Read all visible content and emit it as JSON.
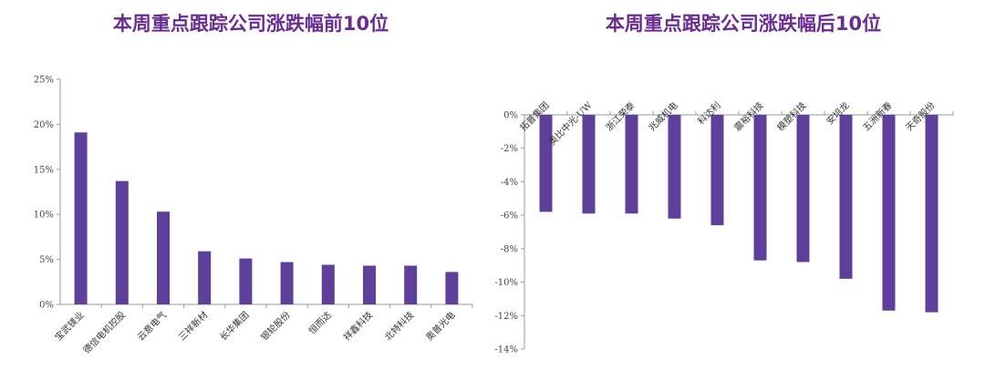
{
  "colors": {
    "bar": "#5e3f99",
    "title": "#6a2c91",
    "axis": "#9a9a9a"
  },
  "chart_data": [
    {
      "type": "bar",
      "title": "本周重点跟踪公司涨跌幅前10位",
      "categories": [
        "宝武镁业",
        "德信电机控股",
        "云意电气",
        "三祥新材",
        "长华集团",
        "银轮股份",
        "恒而达",
        "祥鑫科技",
        "北特科技",
        "奥普光电"
      ],
      "values": [
        19.1,
        13.7,
        10.3,
        5.9,
        5.1,
        4.7,
        4.4,
        4.3,
        4.3,
        3.6
      ],
      "ylim": [
        0,
        25
      ],
      "yticks": [
        0,
        5,
        10,
        15,
        20,
        25
      ],
      "tick_labels": [
        "0%",
        "5%",
        "10%",
        "15%",
        "20%",
        "25%"
      ],
      "xlabel": "",
      "ylabel": "",
      "grid": false,
      "category_axis": "bottom"
    },
    {
      "type": "bar",
      "title": "本周重点跟踪公司涨跌幅后10位",
      "categories": [
        "拓普集团",
        "奥比中光-UW",
        "浙江荣泰",
        "兆威机电",
        "科达利",
        "震裕科技",
        "模塑科技",
        "安培龙",
        "五洲新春",
        "天奇股份"
      ],
      "values": [
        -5.8,
        -5.9,
        -5.9,
        -6.2,
        -6.6,
        -8.7,
        -8.8,
        -9.8,
        -11.7,
        -11.8
      ],
      "ylim": [
        -14,
        0
      ],
      "yticks": [
        0,
        -2,
        -4,
        -6,
        -8,
        -10,
        -12,
        -14
      ],
      "tick_labels": [
        "0%",
        "-2%",
        "-4%",
        "-6%",
        "-8%",
        "-10%",
        "-12%",
        "-14%"
      ],
      "xlabel": "",
      "ylabel": "",
      "grid": false,
      "category_axis": "top"
    }
  ]
}
